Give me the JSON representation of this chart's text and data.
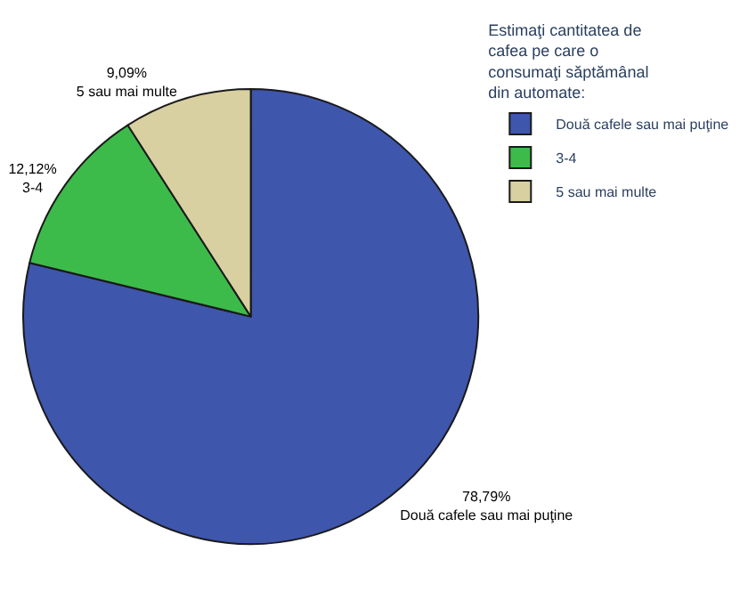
{
  "chart_data": {
    "type": "pie",
    "legend_title": "Estimaţi cantitatea de cafea pe care o consumaţi săptămânal din automate:",
    "categories": [
      "Două cafele sau mai puţine",
      "3-4",
      "5 sau mai multe"
    ],
    "values": [
      78.79,
      12.12,
      9.09
    ],
    "value_labels": [
      "78,79%",
      "12,12%",
      "9,09%"
    ],
    "colors": [
      "#3e56ac",
      "#3dbb4a",
      "#d8d0a0"
    ],
    "legend": "top right"
  }
}
